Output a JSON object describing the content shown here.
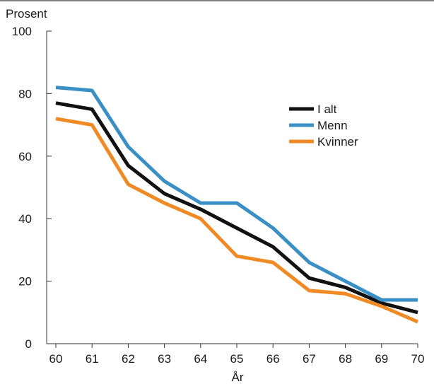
{
  "chart_data": {
    "type": "line",
    "title": "",
    "ylabel": "Prosent",
    "xlabel": "År",
    "x": [
      60,
      61,
      62,
      63,
      64,
      65,
      66,
      67,
      68,
      69,
      70
    ],
    "ylim": [
      0,
      100
    ],
    "yticks": [
      0,
      20,
      40,
      60,
      80,
      100
    ],
    "grid": false,
    "legend_position": "upper-right",
    "series": [
      {
        "name": "I alt",
        "color": "#111111",
        "values": [
          77,
          75,
          57,
          48,
          43,
          37,
          31,
          21,
          18,
          13,
          10
        ]
      },
      {
        "name": "Menn",
        "color": "#3a8fc4",
        "values": [
          82,
          81,
          63,
          52,
          45,
          45,
          37,
          26,
          20,
          14,
          14
        ]
      },
      {
        "name": "Kvinner",
        "color": "#f08a24",
        "values": [
          72,
          70,
          51,
          45,
          40,
          28,
          26,
          17,
          16,
          12,
          7
        ]
      }
    ]
  }
}
